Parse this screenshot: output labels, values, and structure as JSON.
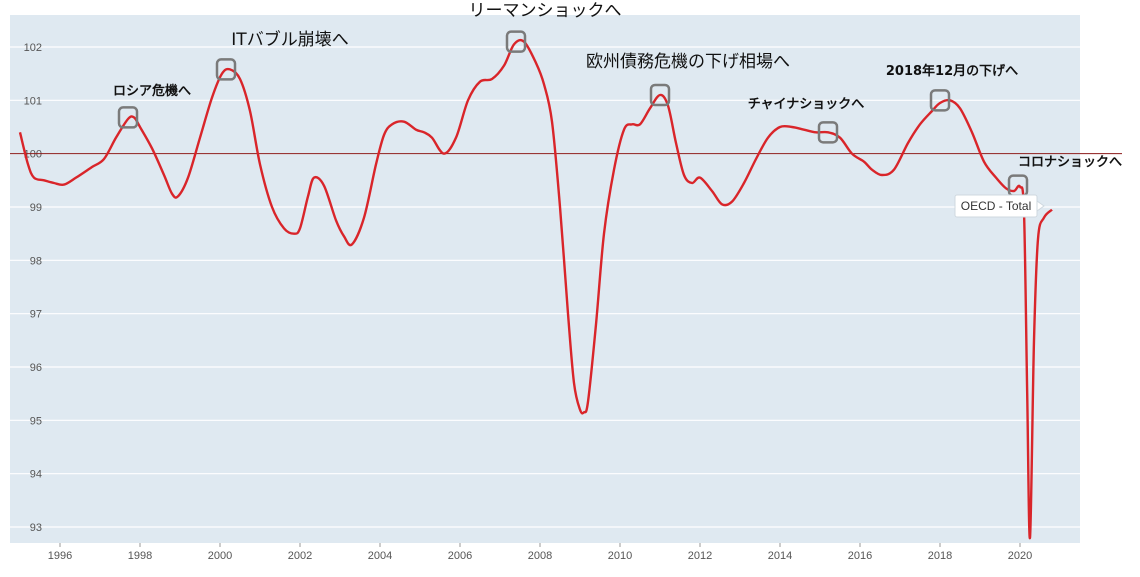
{
  "chart_data": {
    "type": "line",
    "title": "",
    "xlabel": "",
    "ylabel": "",
    "xlim": [
      1994.75,
      2021.5
    ],
    "ylim": [
      92.7,
      102.6
    ],
    "grid": true,
    "reference_line": 100,
    "x_ticks": [
      "1996",
      "1998",
      "2000",
      "2002",
      "2004",
      "2006",
      "2008",
      "2010",
      "2012",
      "2014",
      "2016",
      "2018",
      "2020"
    ],
    "y_ticks": [
      "93",
      "94",
      "95",
      "96",
      "97",
      "98",
      "99",
      "100",
      "101",
      "102"
    ],
    "series": [
      {
        "name": "OECD - Total",
        "color": "#d9252a",
        "x": [
          1995.0,
          1995.2,
          1995.35,
          1995.6,
          1995.85,
          1996.1,
          1996.4,
          1996.8,
          1997.1,
          1997.4,
          1997.7,
          1997.85,
          1998.0,
          1998.3,
          1998.6,
          1998.8,
          1998.95,
          1999.2,
          1999.5,
          1999.8,
          2000.05,
          2000.25,
          2000.5,
          2000.75,
          2001.0,
          2001.3,
          2001.6,
          2001.85,
          2002.0,
          2002.2,
          2002.35,
          2002.6,
          2002.9,
          2003.1,
          2003.3,
          2003.6,
          2003.9,
          2004.1,
          2004.3,
          2004.6,
          2004.9,
          2005.1,
          2005.3,
          2005.6,
          2005.9,
          2006.2,
          2006.5,
          2006.8,
          2007.1,
          2007.35,
          2007.6,
          2007.9,
          2008.1,
          2008.3,
          2008.5,
          2008.7,
          2008.85,
          2009.0,
          2009.1,
          2009.2,
          2009.4,
          2009.6,
          2009.85,
          2010.1,
          2010.3,
          2010.5,
          2010.75,
          2011.0,
          2011.2,
          2011.4,
          2011.6,
          2011.8,
          2012.0,
          2012.3,
          2012.55,
          2012.8,
          2013.1,
          2013.4,
          2013.7,
          2014.0,
          2014.3,
          2014.6,
          2014.9,
          2015.2,
          2015.5,
          2015.8,
          2016.1,
          2016.3,
          2016.55,
          2016.85,
          2017.2,
          2017.5,
          2017.8,
          2018.0,
          2018.25,
          2018.5,
          2018.8,
          2019.1,
          2019.4,
          2019.65,
          2019.85,
          2020.0,
          2020.1,
          2020.18,
          2020.25,
          2020.35,
          2020.45,
          2020.6,
          2020.8
        ],
        "values": [
          100.4,
          99.8,
          99.55,
          99.5,
          99.45,
          99.42,
          99.55,
          99.75,
          99.9,
          100.3,
          100.65,
          100.68,
          100.5,
          100.1,
          99.6,
          99.25,
          99.2,
          99.55,
          100.3,
          101.05,
          101.5,
          101.58,
          101.4,
          100.8,
          99.8,
          99.0,
          98.6,
          98.5,
          98.6,
          99.2,
          99.55,
          99.4,
          98.75,
          98.45,
          98.3,
          98.8,
          99.8,
          100.35,
          100.55,
          100.6,
          100.45,
          100.4,
          100.3,
          100.0,
          100.3,
          101.0,
          101.35,
          101.4,
          101.65,
          102.05,
          102.1,
          101.7,
          101.3,
          100.6,
          99.0,
          97.0,
          95.7,
          95.2,
          95.15,
          95.35,
          96.8,
          98.5,
          99.7,
          100.45,
          100.55,
          100.55,
          100.85,
          101.1,
          100.9,
          100.2,
          99.6,
          99.45,
          99.55,
          99.3,
          99.05,
          99.1,
          99.45,
          99.9,
          100.3,
          100.5,
          100.5,
          100.45,
          100.4,
          100.4,
          100.3,
          100.0,
          99.85,
          99.7,
          99.6,
          99.7,
          100.2,
          100.55,
          100.8,
          100.95,
          101.0,
          100.85,
          100.4,
          99.85,
          99.55,
          99.35,
          99.3,
          99.38,
          98.9,
          95.5,
          92.8,
          96.5,
          98.4,
          98.8,
          98.95
        ]
      }
    ],
    "annotations": [
      {
        "text": "ロシア危機へ",
        "x": 1997.7,
        "y": 100.68,
        "size": "small"
      },
      {
        "text": "ITバブル崩壊へ",
        "x": 2000.15,
        "y": 101.58,
        "size": "large"
      },
      {
        "text": "リーマンショックへ",
        "x": 2007.4,
        "y": 102.1,
        "size": "large"
      },
      {
        "text": "欧州債務危機の下げ相場へ",
        "x": 2011.0,
        "y": 101.1,
        "size": "large"
      },
      {
        "text": "チャイナショックへ",
        "x": 2015.2,
        "y": 100.4,
        "size": "small"
      },
      {
        "text": "2018年12月の下げへ",
        "x": 2018.0,
        "y": 101.0,
        "size": "small"
      },
      {
        "text": "コロナショックへ",
        "x": 2019.95,
        "y": 99.4,
        "size": "small"
      }
    ],
    "tooltip": "OECD - Total"
  }
}
